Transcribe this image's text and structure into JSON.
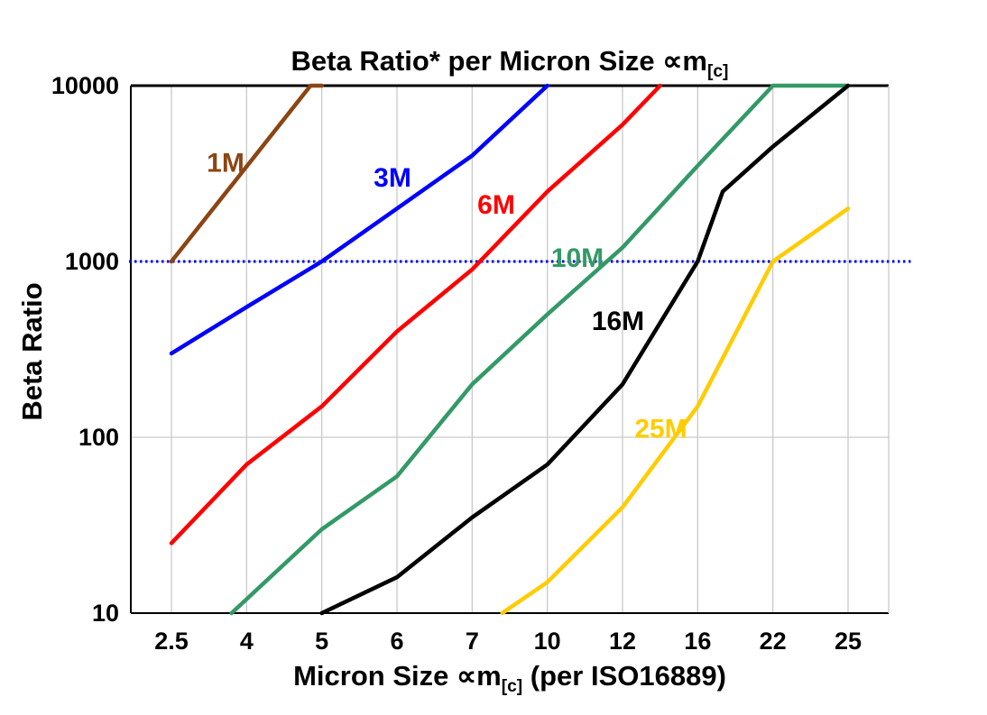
{
  "page": {
    "background": "#FFFFFF"
  },
  "chart_data": {
    "type": "line",
    "title": "Beta Ratio* per Micron Size ∝m[c]",
    "title_parts": {
      "prefix": "Beta Ratio* per Micron Size ∝m",
      "sub": "[c]"
    },
    "xlabel": "Micron Size ∝m[c] (per ISO16889)",
    "xlabel_parts": {
      "prefix": "Micron Size ∝m",
      "sub": "[c]",
      "suffix": " (per ISO16889)"
    },
    "ylabel": "Beta Ratio",
    "x_categories": [
      "2.5",
      "4",
      "5",
      "6",
      "7",
      "10",
      "12",
      "16",
      "22",
      "25"
    ],
    "x_values": [
      2.5,
      4,
      5,
      6,
      7,
      10,
      12,
      16,
      22,
      25
    ],
    "y_scale": "log",
    "y_ticks": [
      10,
      100,
      1000,
      10000
    ],
    "y_tick_labels": [
      "10",
      "100",
      "1000",
      "10000"
    ],
    "ylim": [
      10,
      10000
    ],
    "grid": true,
    "gridline_color": "#C9C9C9",
    "border_color": "#000000",
    "reference_line": {
      "value": 1000,
      "color": "#0000E0",
      "style": "dotted"
    },
    "legend_position": "inline-labels",
    "series": [
      {
        "name": "1M",
        "color": "#8B4513",
        "points": [
          [
            2.5,
            1000
          ],
          [
            4.85,
            10000
          ],
          [
            5,
            10000
          ]
        ],
        "label": {
          "ci": 0.72,
          "v": 3650
        }
      },
      {
        "name": "3M",
        "color": "#0000FF",
        "points": [
          [
            2.5,
            300
          ],
          [
            4,
            550
          ],
          [
            5,
            1000
          ],
          [
            6,
            2000
          ],
          [
            7,
            4000
          ],
          [
            10,
            10000
          ]
        ],
        "label": {
          "ci": 2.94,
          "v": 3000
        }
      },
      {
        "name": "6M",
        "color": "#FF0000",
        "points": [
          [
            2.5,
            25
          ],
          [
            4,
            70
          ],
          [
            5,
            150
          ],
          [
            6,
            400
          ],
          [
            7,
            900
          ],
          [
            10,
            2500
          ],
          [
            12,
            6000
          ],
          [
            14,
            10000
          ]
        ],
        "label": {
          "ci": 4.32,
          "v": 2100
        }
      },
      {
        "name": "10M",
        "color": "#339966",
        "points": [
          [
            3.7,
            10
          ],
          [
            5,
            30
          ],
          [
            6,
            60
          ],
          [
            7,
            200
          ],
          [
            10,
            500
          ],
          [
            12,
            1200
          ],
          [
            16,
            3500
          ],
          [
            22,
            10000
          ],
          [
            25,
            10000
          ]
        ],
        "label": {
          "ci": 5.4,
          "v": 1050
        }
      },
      {
        "name": "16M",
        "color": "#000000",
        "points": [
          [
            5,
            10
          ],
          [
            6,
            16
          ],
          [
            7,
            35
          ],
          [
            10,
            70
          ],
          [
            12,
            200
          ],
          [
            16,
            1000
          ],
          [
            18,
            2500
          ],
          [
            22,
            4500
          ],
          [
            25,
            10000
          ]
        ],
        "label": {
          "ci": 5.94,
          "v": 460
        }
      },
      {
        "name": "25M",
        "color": "#FFCC00",
        "points": [
          [
            8.2,
            10
          ],
          [
            10,
            15
          ],
          [
            12,
            40
          ],
          [
            16,
            150
          ],
          [
            22,
            1000
          ],
          [
            25,
            2000
          ]
        ],
        "label": {
          "ci": 6.51,
          "v": 112
        }
      }
    ]
  }
}
